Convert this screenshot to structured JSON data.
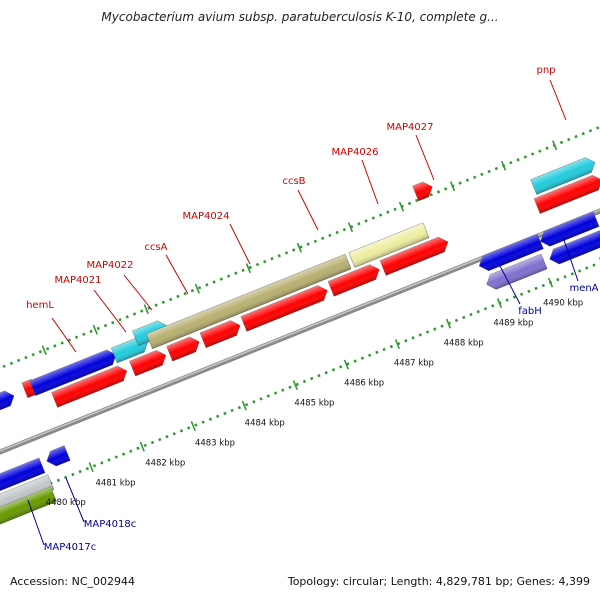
{
  "header": {
    "title": "Mycobacterium avium subsp. paratuberculosis K-10, complete g..."
  },
  "footer": {
    "accession": "Accession: NC_002944",
    "summary": "Topology: circular; Length: 4,829,781 bp; Genes: 4,399"
  },
  "colors": {
    "forward_label": "#cc0000",
    "reverse_label": "#000099",
    "backbone": "#8a8a8a",
    "tick": "#339933",
    "cds_red": "#ff0000",
    "cds_blue": "#0000dd",
    "cds_cyan": "#22ccdd",
    "cds_olive": "#b8b070",
    "cds_khaki": "#eeeea0",
    "cds_purple": "#8070d0",
    "cds_silver": "#c0c4c8",
    "cds_green": "#669900"
  },
  "kbp_labels": [
    {
      "text": "4480 kbp",
      "kbp": 4480
    },
    {
      "text": "4481 kbp",
      "kbp": 4481
    },
    {
      "text": "4482 kbp",
      "kbp": 4482
    },
    {
      "text": "4483 kbp",
      "kbp": 4483
    },
    {
      "text": "4484 kbp",
      "kbp": 4484
    },
    {
      "text": "4485 kbp",
      "kbp": 4485
    },
    {
      "text": "4486 kbp",
      "kbp": 4486
    },
    {
      "text": "4487 kbp",
      "kbp": 4487
    },
    {
      "text": "4488 kbp",
      "kbp": 4488
    },
    {
      "text": "4489 kbp",
      "kbp": 4489
    },
    {
      "text": "4490 kbp",
      "kbp": 4490
    }
  ],
  "genes": [
    {
      "name": "hemL",
      "strand": "forward"
    },
    {
      "name": "MAP4021",
      "strand": "forward"
    },
    {
      "name": "MAP4022",
      "strand": "forward"
    },
    {
      "name": "ccsA",
      "strand": "forward"
    },
    {
      "name": "MAP4024",
      "strand": "forward"
    },
    {
      "name": "ccsB",
      "strand": "forward"
    },
    {
      "name": "MAP4026",
      "strand": "forward"
    },
    {
      "name": "MAP4027",
      "strand": "forward"
    },
    {
      "name": "pnp",
      "strand": "forward"
    },
    {
      "name": "fabH",
      "strand": "reverse"
    },
    {
      "name": "menA",
      "strand": "reverse"
    },
    {
      "name": "MAP4018c",
      "strand": "reverse"
    },
    {
      "name": "MAP4017c",
      "strand": "reverse"
    }
  ]
}
